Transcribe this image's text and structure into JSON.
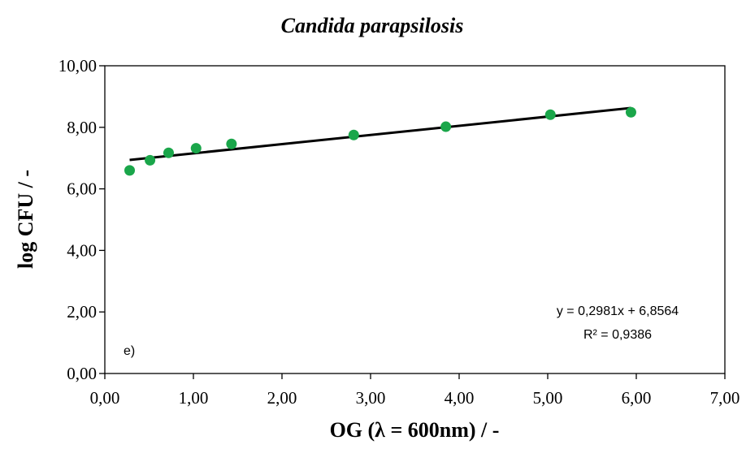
{
  "chart_data": {
    "type": "scatter",
    "title": "Candida parapsilosis",
    "xlabel": "OG (λ = 600nm) / -",
    "ylabel": "log CFU / -",
    "xlim": [
      0,
      7
    ],
    "ylim": [
      0,
      10
    ],
    "x_ticks": [
      0,
      1,
      2,
      3,
      4,
      5,
      6,
      7
    ],
    "x_tick_labels": [
      "0,00",
      "1,00",
      "2,00",
      "3,00",
      "4,00",
      "5,00",
      "6,00",
      "7,00"
    ],
    "y_ticks": [
      0,
      2,
      4,
      6,
      8,
      10
    ],
    "y_tick_labels": [
      "0,00",
      "2,00",
      "4,00",
      "6,00",
      "8,00",
      "10,00"
    ],
    "grid": false,
    "legend": "none",
    "marker_color": "#1aa64a",
    "line_color": "#000000",
    "series": [
      {
        "x": [
          0.28,
          0.51,
          0.72,
          1.03,
          1.43,
          2.81,
          3.85,
          5.03,
          5.94
        ],
        "y": [
          6.6,
          6.93,
          7.17,
          7.32,
          7.46,
          7.75,
          8.02,
          8.41,
          8.49
        ]
      }
    ],
    "trendline": {
      "slope": 0.2981,
      "intercept": 6.8564,
      "x_range": [
        0.28,
        5.94
      ],
      "equation": "y = 0,2981x + 6,8564",
      "r2": "R² = 0,9386"
    },
    "panel_label": "e)"
  }
}
